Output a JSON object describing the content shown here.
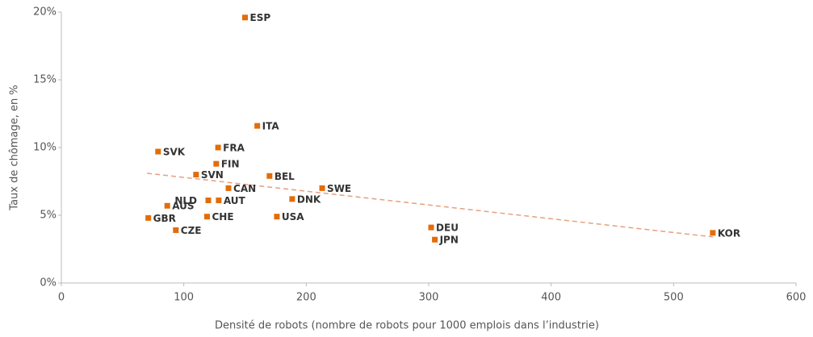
{
  "chart_data": {
    "type": "scatter",
    "x_label": "Densité de robots (nombre de robots pour 1000 emplois dans l’industrie)",
    "y_label": "Taux de chômage, en %",
    "labels": [
      "ESP",
      "ITA",
      "SVK",
      "FRA",
      "FIN",
      "SVN",
      "BEL",
      "CAN",
      "SWE",
      "NLD",
      "AUT",
      "DNK",
      "AUS",
      "GBR",
      "CHE",
      "USA",
      "CZE",
      "DEU",
      "JPN",
      "KOR"
    ],
    "x": [
      150,
      160,
      79,
      128,
      126.5,
      110,
      170,
      136.5,
      213,
      120,
      128.5,
      188.5,
      86.5,
      71,
      119,
      176,
      93.5,
      302,
      305,
      532
    ],
    "values": [
      19.6,
      11.6,
      9.7,
      10.0,
      8.8,
      8.0,
      7.9,
      7.0,
      7.0,
      6.1,
      6.1,
      6.2,
      5.7,
      4.8,
      4.9,
      4.9,
      3.9,
      4.1,
      3.2,
      3.7
    ],
    "color": "#e36c0a",
    "trendline": {
      "x": [
        70,
        532
      ],
      "y": [
        8.1,
        3.4
      ],
      "color": "#e8a07e",
      "dashed": true
    },
    "xlim": [
      0,
      600
    ],
    "xticks": [
      0,
      100,
      200,
      300,
      400,
      500,
      600
    ],
    "ylim": [
      0,
      20
    ],
    "yticks": [
      {
        "value": 0,
        "label": "0%"
      },
      {
        "value": 5,
        "label": "5%"
      },
      {
        "value": 10,
        "label": "10%"
      },
      {
        "value": 15,
        "label": "15%"
      },
      {
        "value": 20,
        "label": "20%"
      }
    ],
    "grid": false
  }
}
